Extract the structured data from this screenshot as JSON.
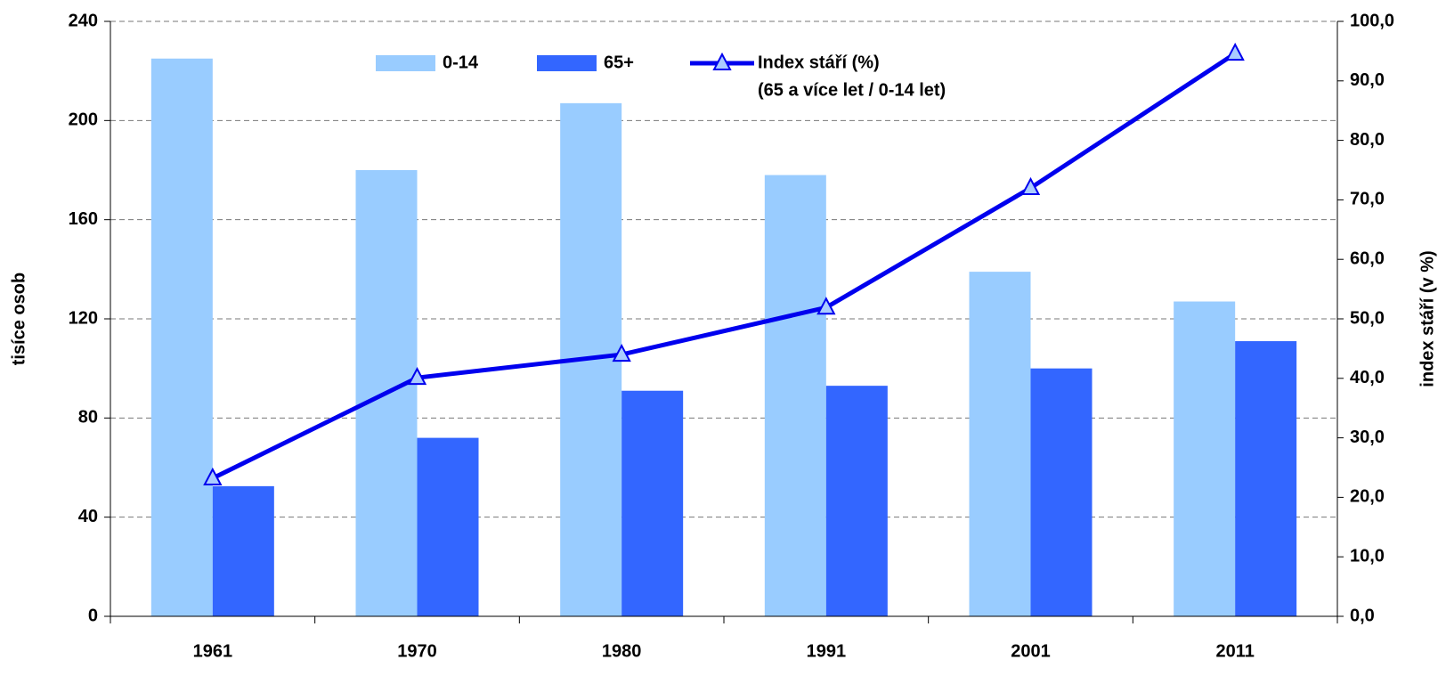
{
  "chart_data": {
    "type": "bar",
    "categories": [
      "1961",
      "1970",
      "1980",
      "1991",
      "2001",
      "2011"
    ],
    "series": [
      {
        "name": "0-14",
        "color": "#99ccff",
        "values": [
          225,
          180,
          207,
          178,
          139,
          127
        ]
      },
      {
        "name": "65+",
        "color": "#3366ff",
        "values": [
          52.5,
          72,
          91,
          93,
          100,
          111
        ]
      },
      {
        "name": "Index stáří (%)",
        "type": "line",
        "axis": "y2",
        "color": "#0000ee",
        "values": [
          23.2,
          40.1,
          44.0,
          51.9,
          72.0,
          94.6
        ]
      }
    ],
    "legend_note": "(65 a více let / 0-14 let)",
    "ylabel": "tisíce osob",
    "y2label": "index stáří (v %)",
    "ylim": [
      0,
      240
    ],
    "yticks": [
      0,
      40,
      80,
      120,
      160,
      200,
      240
    ],
    "y2lim": [
      0,
      100
    ],
    "y2ticks": [
      {
        "value": 0,
        "label": "0,0"
      },
      {
        "value": 10,
        "label": "10,0"
      },
      {
        "value": 20,
        "label": "20,0"
      },
      {
        "value": 30,
        "label": "30,0"
      },
      {
        "value": 40,
        "label": "40,0"
      },
      {
        "value": 50,
        "label": "50,0"
      },
      {
        "value": 60,
        "label": "60,0"
      },
      {
        "value": 70,
        "label": "70,0"
      },
      {
        "value": 80,
        "label": "80,0"
      },
      {
        "value": 90,
        "label": "90,0"
      },
      {
        "value": 100,
        "label": "100,0"
      }
    ],
    "grid": true,
    "legend": "top"
  }
}
